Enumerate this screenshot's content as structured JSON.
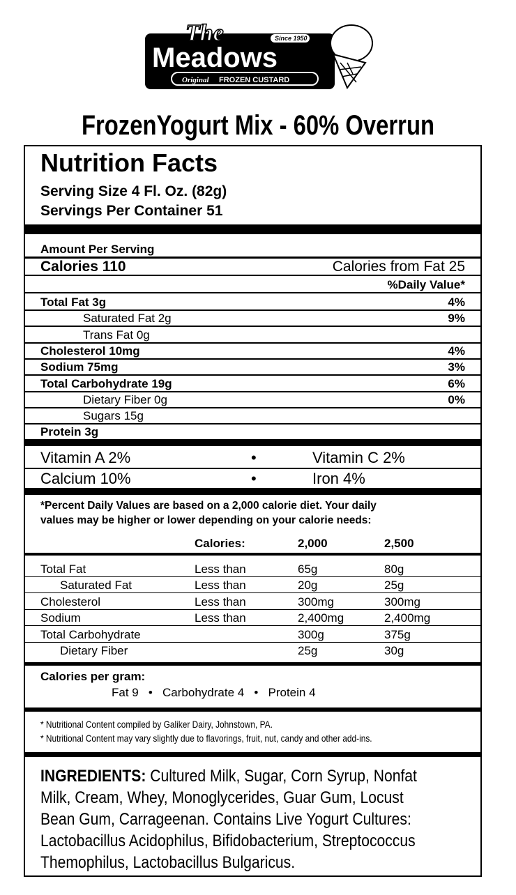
{
  "logo": {
    "the": "The",
    "name": "Meadows",
    "since": "Since 1950",
    "tagline_script": "Original",
    "tagline": "FROZEN CUSTARD"
  },
  "title": "FrozenYogurt Mix - 60% Overrun",
  "facts": {
    "heading": "Nutrition Facts",
    "serving_size": "Serving Size 4 Fl. Oz. (82g)",
    "servings": "Servings Per Container 51",
    "amount": "Amount Per Serving",
    "calories": "Calories 110",
    "calories_fat": "Calories from Fat 25",
    "dv_header": "%Daily Value*",
    "nutrients": [
      {
        "label": "Total Fat 3g",
        "dv": "4%",
        "bold": true
      },
      {
        "label": "Saturated Fat 2g",
        "dv": "9%",
        "indent": true
      },
      {
        "label": "Trans Fat 0g",
        "dv": "",
        "indent": true
      },
      {
        "label": "Cholesterol 10mg",
        "dv": "4%",
        "bold": true
      },
      {
        "label": "Sodium 75mg",
        "dv": "3%",
        "bold": true
      },
      {
        "label": "Total Carbohydrate 19g",
        "dv": "6%",
        "bold": true
      },
      {
        "label": "Dietary Fiber 0g",
        "dv": "0%",
        "indent": true
      },
      {
        "label": "Sugars 15g",
        "dv": "",
        "indent": true
      },
      {
        "label": "Protein 3g",
        "dv": "",
        "bold": true
      }
    ],
    "vitamins": [
      [
        "Vitamin A 2%",
        "•",
        "Vitamin C 2%"
      ],
      [
        "Calcium 10%",
        "•",
        "Iron 4%"
      ]
    ],
    "footnote": [
      "*Percent Daily Values are based on a 2,000 calorie diet. Your daily",
      "values may be higher or lower depending on your calorie needs:"
    ],
    "table_header": [
      "Calories:",
      "2,000",
      "2,500"
    ],
    "table": [
      [
        "Total Fat",
        "Less than",
        "65g",
        "80g"
      ],
      [
        "Saturated Fat",
        "Less than",
        "20g",
        "25g"
      ],
      [
        "Cholesterol",
        "Less than",
        "300mg",
        "300mg"
      ],
      [
        "Sodium",
        "Less than",
        "2,400mg",
        "2,400mg"
      ],
      [
        "Total Carbohydrate",
        "",
        "300g",
        "375g"
      ],
      [
        "Dietary Fiber",
        "",
        "25g",
        "30g"
      ]
    ],
    "cal_per_gram": "Calories per gram:",
    "cal_per_gram_values": "Fat 9   •   Carbohydrate 4   •   Protein 4",
    "notes": [
      "* Nutritional Content compiled by Galiker Dairy, Johnstown, PA.",
      "* Nutritional Content may vary slightly due to flavorings, fruit, nut, candy and other add-ins."
    ],
    "ingredients_label": "INGREDIENTS:",
    "ingredients": [
      "Cultured Milk, Sugar, Corn Syrup, Nonfat",
      "Milk, Cream, Whey, Monoglycerides, Guar Gum, Locust",
      "Bean Gum, Carrageenan.  Contains Live Yogurt Cultures:",
      "Lactobacillus Acidophilus, Bifidobacterium, Streptococcus",
      "Themophilus, Lactobacillus Bulgaricus."
    ]
  }
}
